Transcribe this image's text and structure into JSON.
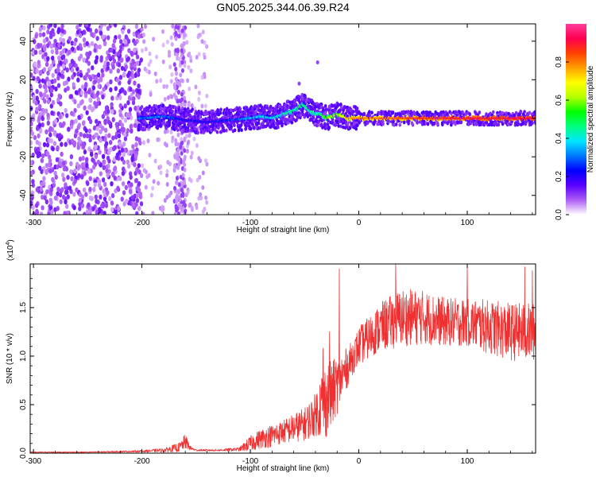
{
  "figure": {
    "title": "GN05.2025.344.06.39.R24"
  },
  "chart_data": [
    {
      "type": "heatmap",
      "name": "spectrogram",
      "xlabel": "Height of straight line (km)",
      "ylabel": "Frequency (Hz)",
      "xlim": [
        -303,
        163
      ],
      "ylim": [
        -50,
        49
      ],
      "x_ticks": [
        -300,
        -200,
        -100,
        0,
        100
      ],
      "y_ticks": [
        -40,
        -20,
        0,
        20,
        40
      ],
      "grid": false,
      "colorbar": {
        "label": "Normalized spectral amplitude",
        "range": [
          0,
          1
        ],
        "ticks": [
          0.0,
          0.2,
          0.4,
          0.6,
          0.8
        ],
        "colormap": [
          "#ffffff",
          "#ad5cf6",
          "#5a00ff",
          "#0000ff",
          "#0078ff",
          "#00e6ff",
          "#00ff80",
          "#00ff00",
          "#b4ff00",
          "#ffff00",
          "#ffa000",
          "#ff4000",
          "#ff0050",
          "#ff3c9b"
        ]
      },
      "ridge": {
        "x": [
          -200,
          -180,
          -160,
          -140,
          -120,
          -100,
          -90,
          -80,
          -70,
          -60,
          -52,
          -45,
          -40,
          -35,
          -30,
          -20,
          -15,
          -10,
          0,
          50,
          100,
          163
        ],
        "frequency": [
          0,
          1,
          -1,
          -2,
          -1,
          0,
          1,
          0,
          2,
          4,
          7,
          4,
          2,
          2,
          0,
          2,
          1,
          0,
          0,
          0,
          0,
          0
        ],
        "amplitude": [
          0.3,
          0.3,
          0.2,
          0.2,
          0.25,
          0.35,
          0.38,
          0.38,
          0.42,
          0.45,
          0.5,
          0.45,
          0.45,
          0.5,
          0.6,
          0.6,
          0.7,
          0.75,
          0.8,
          0.85,
          0.9,
          0.92
        ]
      },
      "noise_region": {
        "x_range": [
          -303,
          -140
        ],
        "dense_x_range": [
          -303,
          -200
        ],
        "stripe_x_range": [
          -170,
          -160
        ],
        "frequency_range": [
          -50,
          49
        ]
      },
      "isolated_points": [
        {
          "x": -38,
          "frequency": 29
        },
        {
          "x": -55,
          "frequency": 18
        }
      ]
    },
    {
      "type": "line",
      "name": "snr",
      "xlabel": "Height of straight line (km)",
      "ylabel": "SNR (10 * v/v)",
      "y_multiplier": "(x10",
      "y_multiplier_exp": "4",
      "y_multiplier_close": ")",
      "xlim": [
        -303,
        163
      ],
      "ylim": [
        0,
        1.95
      ],
      "x_ticks": [
        -300,
        -200,
        -100,
        0,
        100
      ],
      "y_ticks": [
        0.0,
        0.5,
        1.0,
        1.5
      ],
      "y_tick_labels": [
        "0.0",
        "0.5",
        "1.0",
        "1.5"
      ],
      "grid": false,
      "line_color": "#f03030",
      "envelope": {
        "x": [
          -303,
          -250,
          -200,
          -180,
          -165,
          -160,
          -155,
          -150,
          -130,
          -110,
          -100,
          -90,
          -80,
          -70,
          -60,
          -50,
          -45,
          -40,
          -35,
          -30,
          -25,
          -20,
          -15,
          -10,
          -5,
          0,
          10,
          20,
          30,
          40,
          60,
          80,
          100,
          120,
          140,
          163
        ],
        "mean": [
          0.01,
          0.01,
          0.02,
          0.03,
          0.06,
          0.12,
          0.05,
          0.03,
          0.03,
          0.04,
          0.1,
          0.15,
          0.18,
          0.22,
          0.26,
          0.3,
          0.35,
          0.4,
          0.5,
          0.55,
          0.6,
          0.7,
          0.8,
          0.9,
          1.0,
          1.1,
          1.2,
          1.3,
          1.35,
          1.4,
          1.4,
          1.35,
          1.35,
          1.3,
          1.25,
          1.25
        ],
        "amplitude": [
          0.005,
          0.005,
          0.01,
          0.02,
          0.05,
          0.08,
          0.02,
          0.01,
          0.01,
          0.02,
          0.08,
          0.1,
          0.12,
          0.12,
          0.15,
          0.17,
          0.2,
          0.22,
          0.35,
          0.4,
          0.35,
          0.3,
          0.25,
          0.2,
          0.18,
          0.2,
          0.22,
          0.25,
          0.28,
          0.3,
          0.28,
          0.25,
          0.25,
          0.28,
          0.3,
          0.3
        ]
      },
      "spikes": [
        {
          "x": -18,
          "y": 1.9
        },
        {
          "x": -27,
          "y": 1.25
        },
        {
          "x": -33,
          "y": 1.08
        },
        {
          "x": 34,
          "y": 1.95
        },
        {
          "x": 100,
          "y": 1.95
        },
        {
          "x": 153,
          "y": 1.92
        },
        {
          "x": 160,
          "y": 1.88
        }
      ]
    }
  ]
}
